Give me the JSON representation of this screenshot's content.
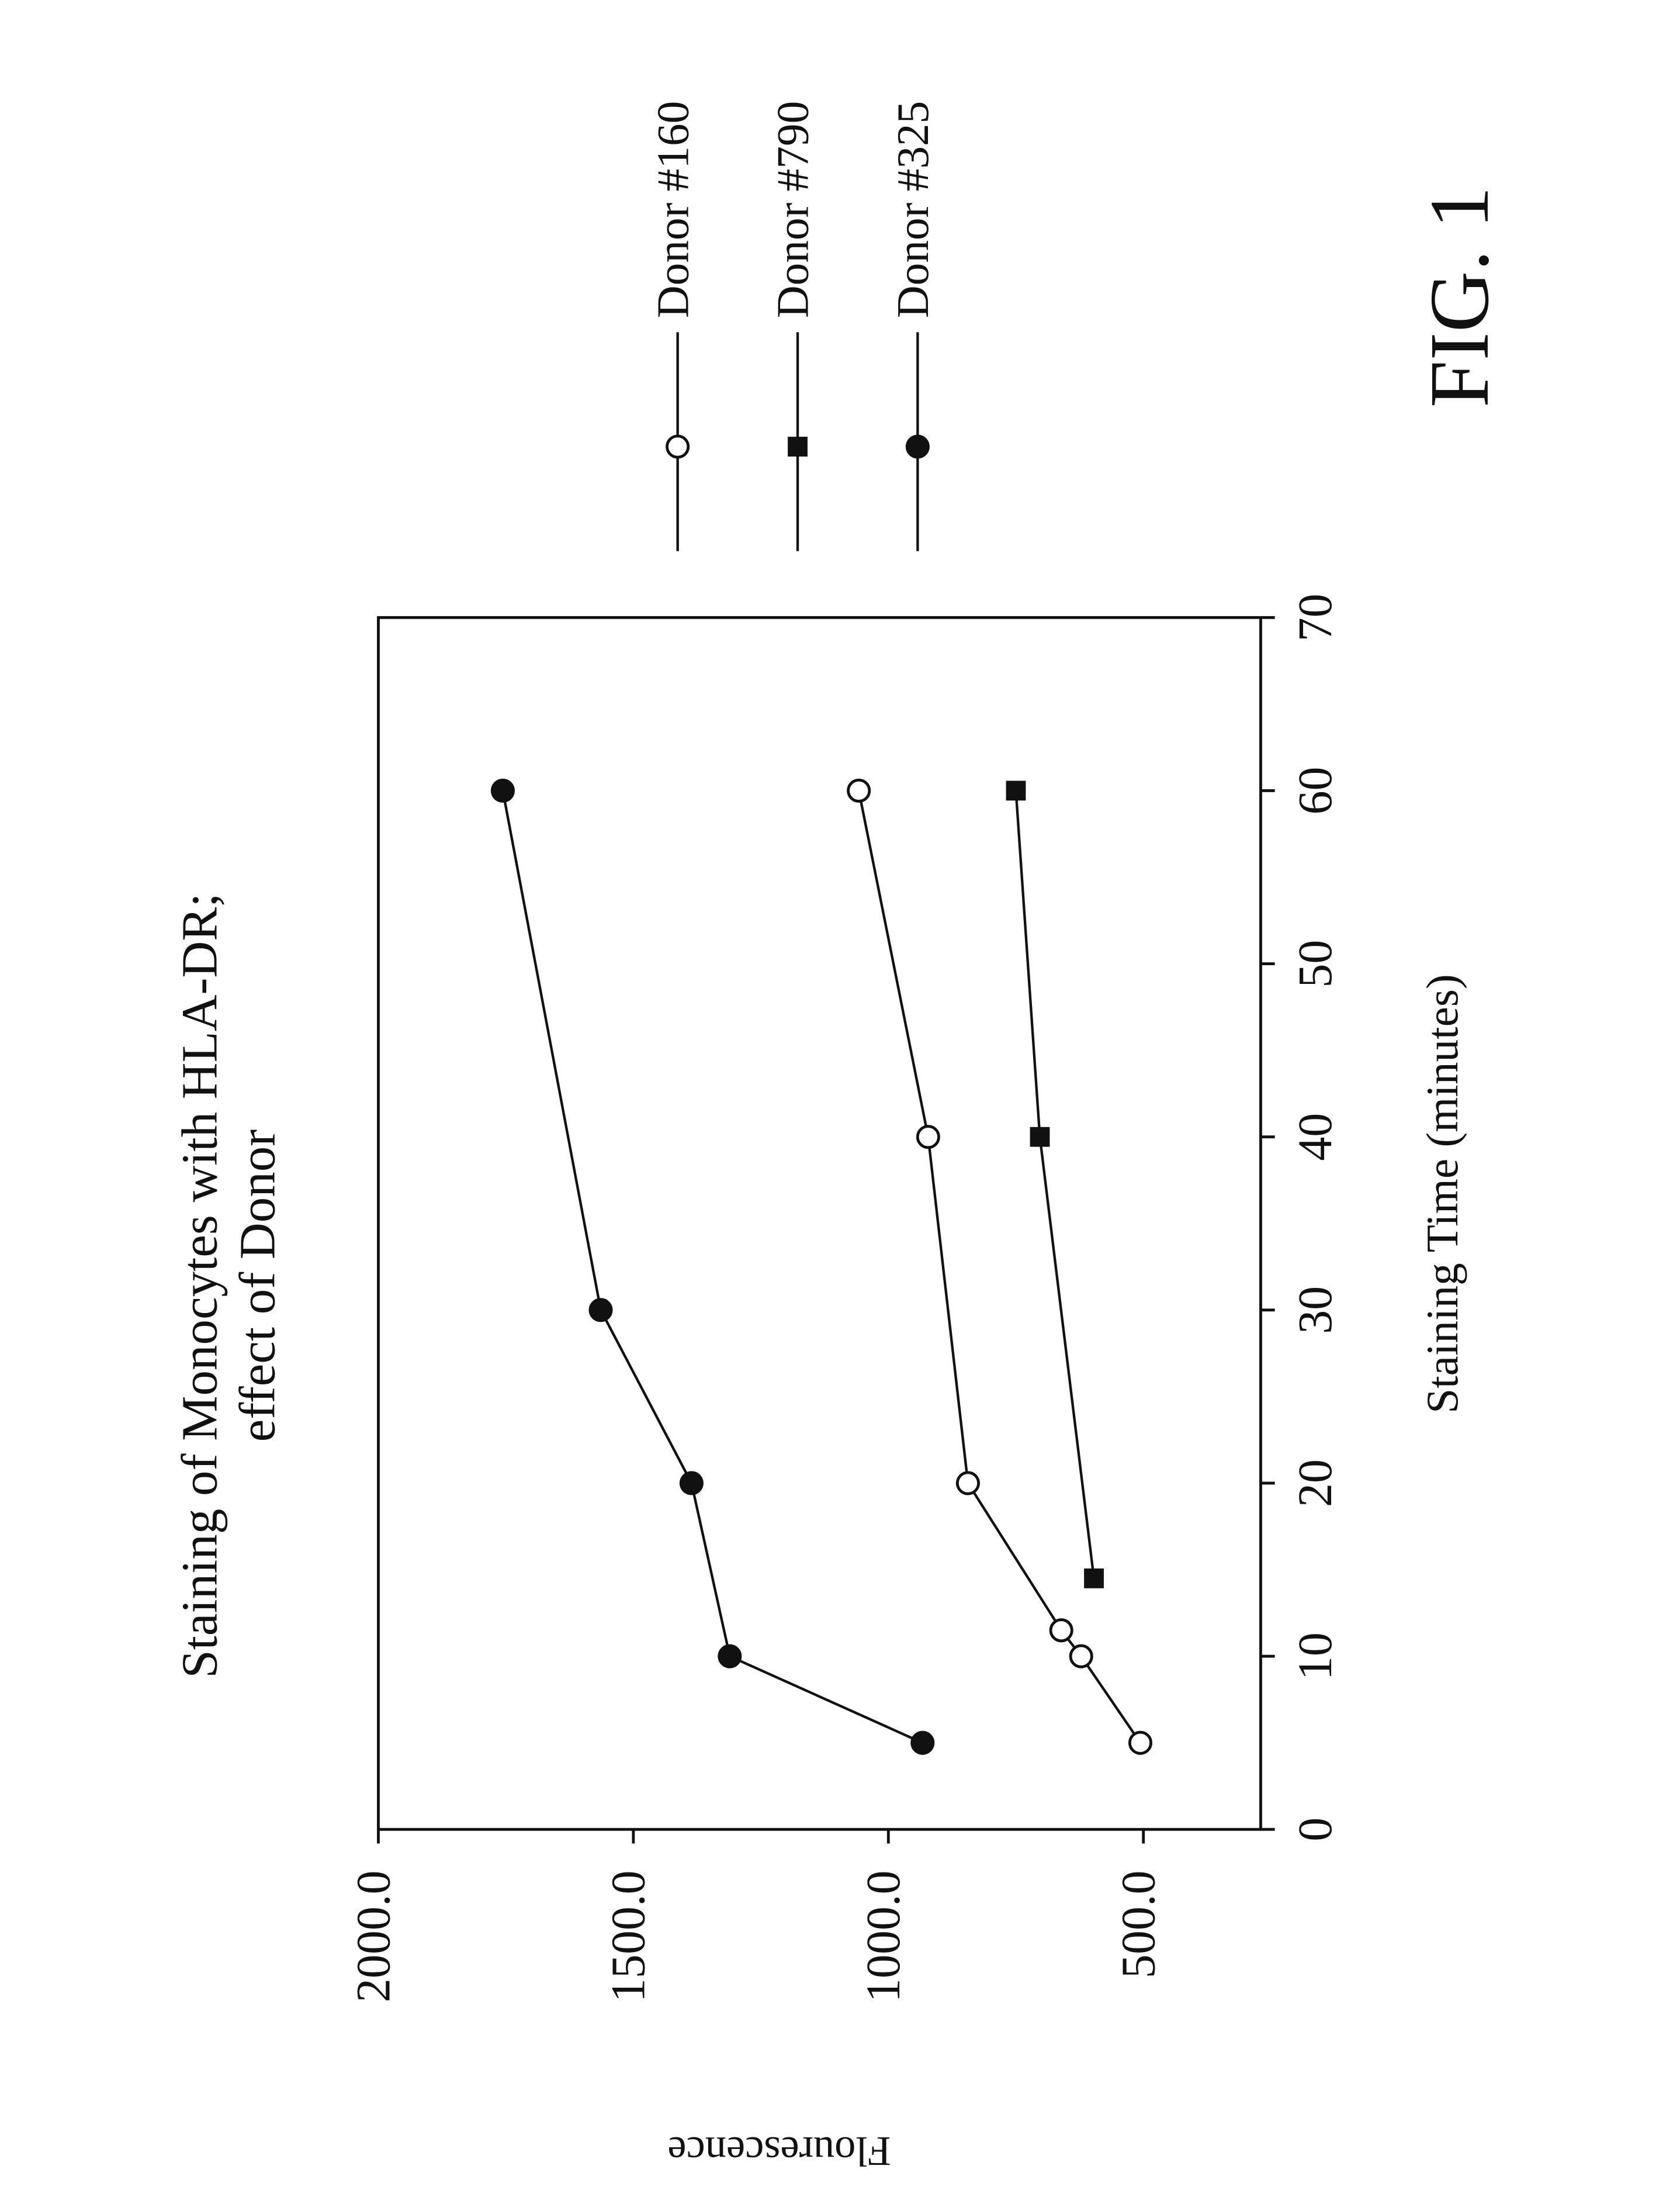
{
  "chart_data": {
    "type": "line",
    "title": [
      "Staining of Monocytes with HLA-DR;",
      "effect of Donor"
    ],
    "x_label": "Staining Time (minutes)",
    "y_label": "Flourescence",
    "figure_label": "FIG. 1",
    "xlim": [
      0,
      70
    ],
    "xticks": [
      0,
      10,
      20,
      30,
      40,
      50,
      60,
      70
    ],
    "ylim": [
      270,
      2000
    ],
    "yticks": [
      {
        "value": 500,
        "label": "500.0"
      },
      {
        "value": 1000,
        "label": "1000.0"
      },
      {
        "value": 1500,
        "label": "1500.0"
      },
      {
        "value": 2000,
        "label": "2000.0"
      }
    ],
    "legend": "right",
    "grid": false,
    "series": [
      {
        "name": "Donor #160",
        "color": "#111111",
        "marker": "circle-open",
        "x": [
          5,
          10,
          11.5,
          20,
          40,
          60
        ],
        "values": [
          506,
          622,
          661,
          844,
          922,
          1058
        ]
      },
      {
        "name": "Donor #790",
        "color": "#111111",
        "marker": "square",
        "x": [
          14.5,
          40,
          60
        ],
        "values": [
          597,
          703,
          750
        ]
      },
      {
        "name": "Donor #325",
        "color": "#111111",
        "marker": "circle",
        "x": [
          5,
          10,
          20,
          30,
          60
        ],
        "values": [
          933,
          1311,
          1386,
          1564,
          1756
        ]
      }
    ]
  }
}
